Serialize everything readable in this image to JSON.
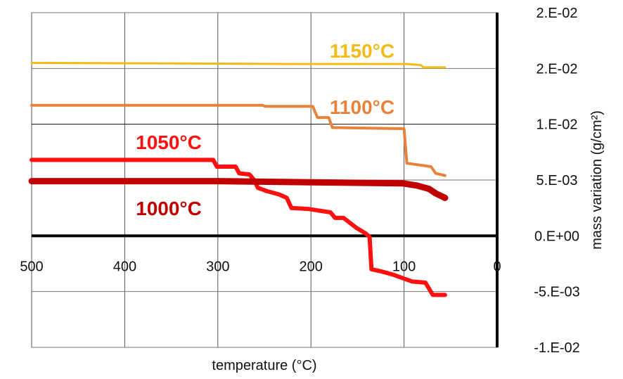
{
  "chart_data": {
    "type": "line",
    "title": "",
    "xlabel": "temperature (°C)",
    "ylabel": "mass variation (g/cm²)",
    "xlim": [
      500,
      0
    ],
    "ylim": [
      -0.01,
      0.02
    ],
    "x_reversed": true,
    "grid": true,
    "x_ticks": [
      "500",
      "400",
      "300",
      "200",
      "100",
      "0"
    ],
    "x_tick_values": [
      500,
      400,
      300,
      200,
      100,
      0
    ],
    "y_ticks": [
      "2.E-02",
      "2.E-02",
      "1.E-02",
      "5.E-03",
      "0.E+00",
      "-5.E-03",
      "-1.E-02"
    ],
    "y_tick_values": [
      0.02,
      0.015,
      0.01,
      0.005,
      0,
      -0.005,
      -0.01
    ],
    "series": [
      {
        "name": "1150°C",
        "color": "#f2bb16",
        "width": 3,
        "points": [
          [
            500,
            0.0155
          ],
          [
            217,
            0.0154
          ],
          [
            97,
            0.0154
          ],
          [
            82,
            0.0153
          ],
          [
            79,
            0.0151
          ],
          [
            56,
            0.0151
          ]
        ]
      },
      {
        "name": "1100°C",
        "color": "#e8823a",
        "width": 4,
        "points": [
          [
            500,
            0.0117
          ],
          [
            252,
            0.0117
          ],
          [
            249,
            0.0116
          ],
          [
            198,
            0.0116
          ],
          [
            193,
            0.0106
          ],
          [
            181,
            0.0106
          ],
          [
            177,
            0.0097
          ],
          [
            100,
            0.0096
          ],
          [
            97,
            0.0065
          ],
          [
            88,
            0.0064
          ],
          [
            71,
            0.0062
          ],
          [
            66,
            0.0056
          ],
          [
            56,
            0.0054
          ]
        ]
      },
      {
        "name": "1050°C",
        "color": "#ff1010",
        "width": 6,
        "points": [
          [
            500,
            0.0068
          ],
          [
            305,
            0.0068
          ],
          [
            301,
            0.0062
          ],
          [
            281,
            0.0062
          ],
          [
            277,
            0.0056
          ],
          [
            266,
            0.0055
          ],
          [
            261,
            0.005
          ],
          [
            257,
            0.0043
          ],
          [
            247,
            0.004
          ],
          [
            234,
            0.0037
          ],
          [
            226,
            0.0034
          ],
          [
            221,
            0.0025
          ],
          [
            202,
            0.0024
          ],
          [
            179,
            0.0021
          ],
          [
            174,
            0.0016
          ],
          [
            165,
            0.0016
          ],
          [
            151,
            0.0007
          ],
          [
            141,
            0.0002
          ],
          [
            137,
            -0.0001
          ],
          [
            135,
            -0.003
          ],
          [
            124,
            -0.0032
          ],
          [
            111,
            -0.0035
          ],
          [
            98,
            -0.0039
          ],
          [
            91,
            -0.0041
          ],
          [
            77,
            -0.0042
          ],
          [
            72,
            -0.0049
          ],
          [
            69,
            -0.0053
          ],
          [
            56,
            -0.0053
          ]
        ]
      },
      {
        "name": "1000°C",
        "color": "#c00000",
        "width": 9,
        "points": [
          [
            500,
            0.0049
          ],
          [
            300,
            0.0049
          ],
          [
            200,
            0.0048
          ],
          [
            101,
            0.0047
          ],
          [
            86,
            0.0045
          ],
          [
            73,
            0.0042
          ],
          [
            66,
            0.0038
          ],
          [
            56,
            0.0034
          ]
        ]
      }
    ],
    "annotations": [
      "1150°C",
      "1100°C",
      "1050°C",
      "1000°C"
    ]
  }
}
